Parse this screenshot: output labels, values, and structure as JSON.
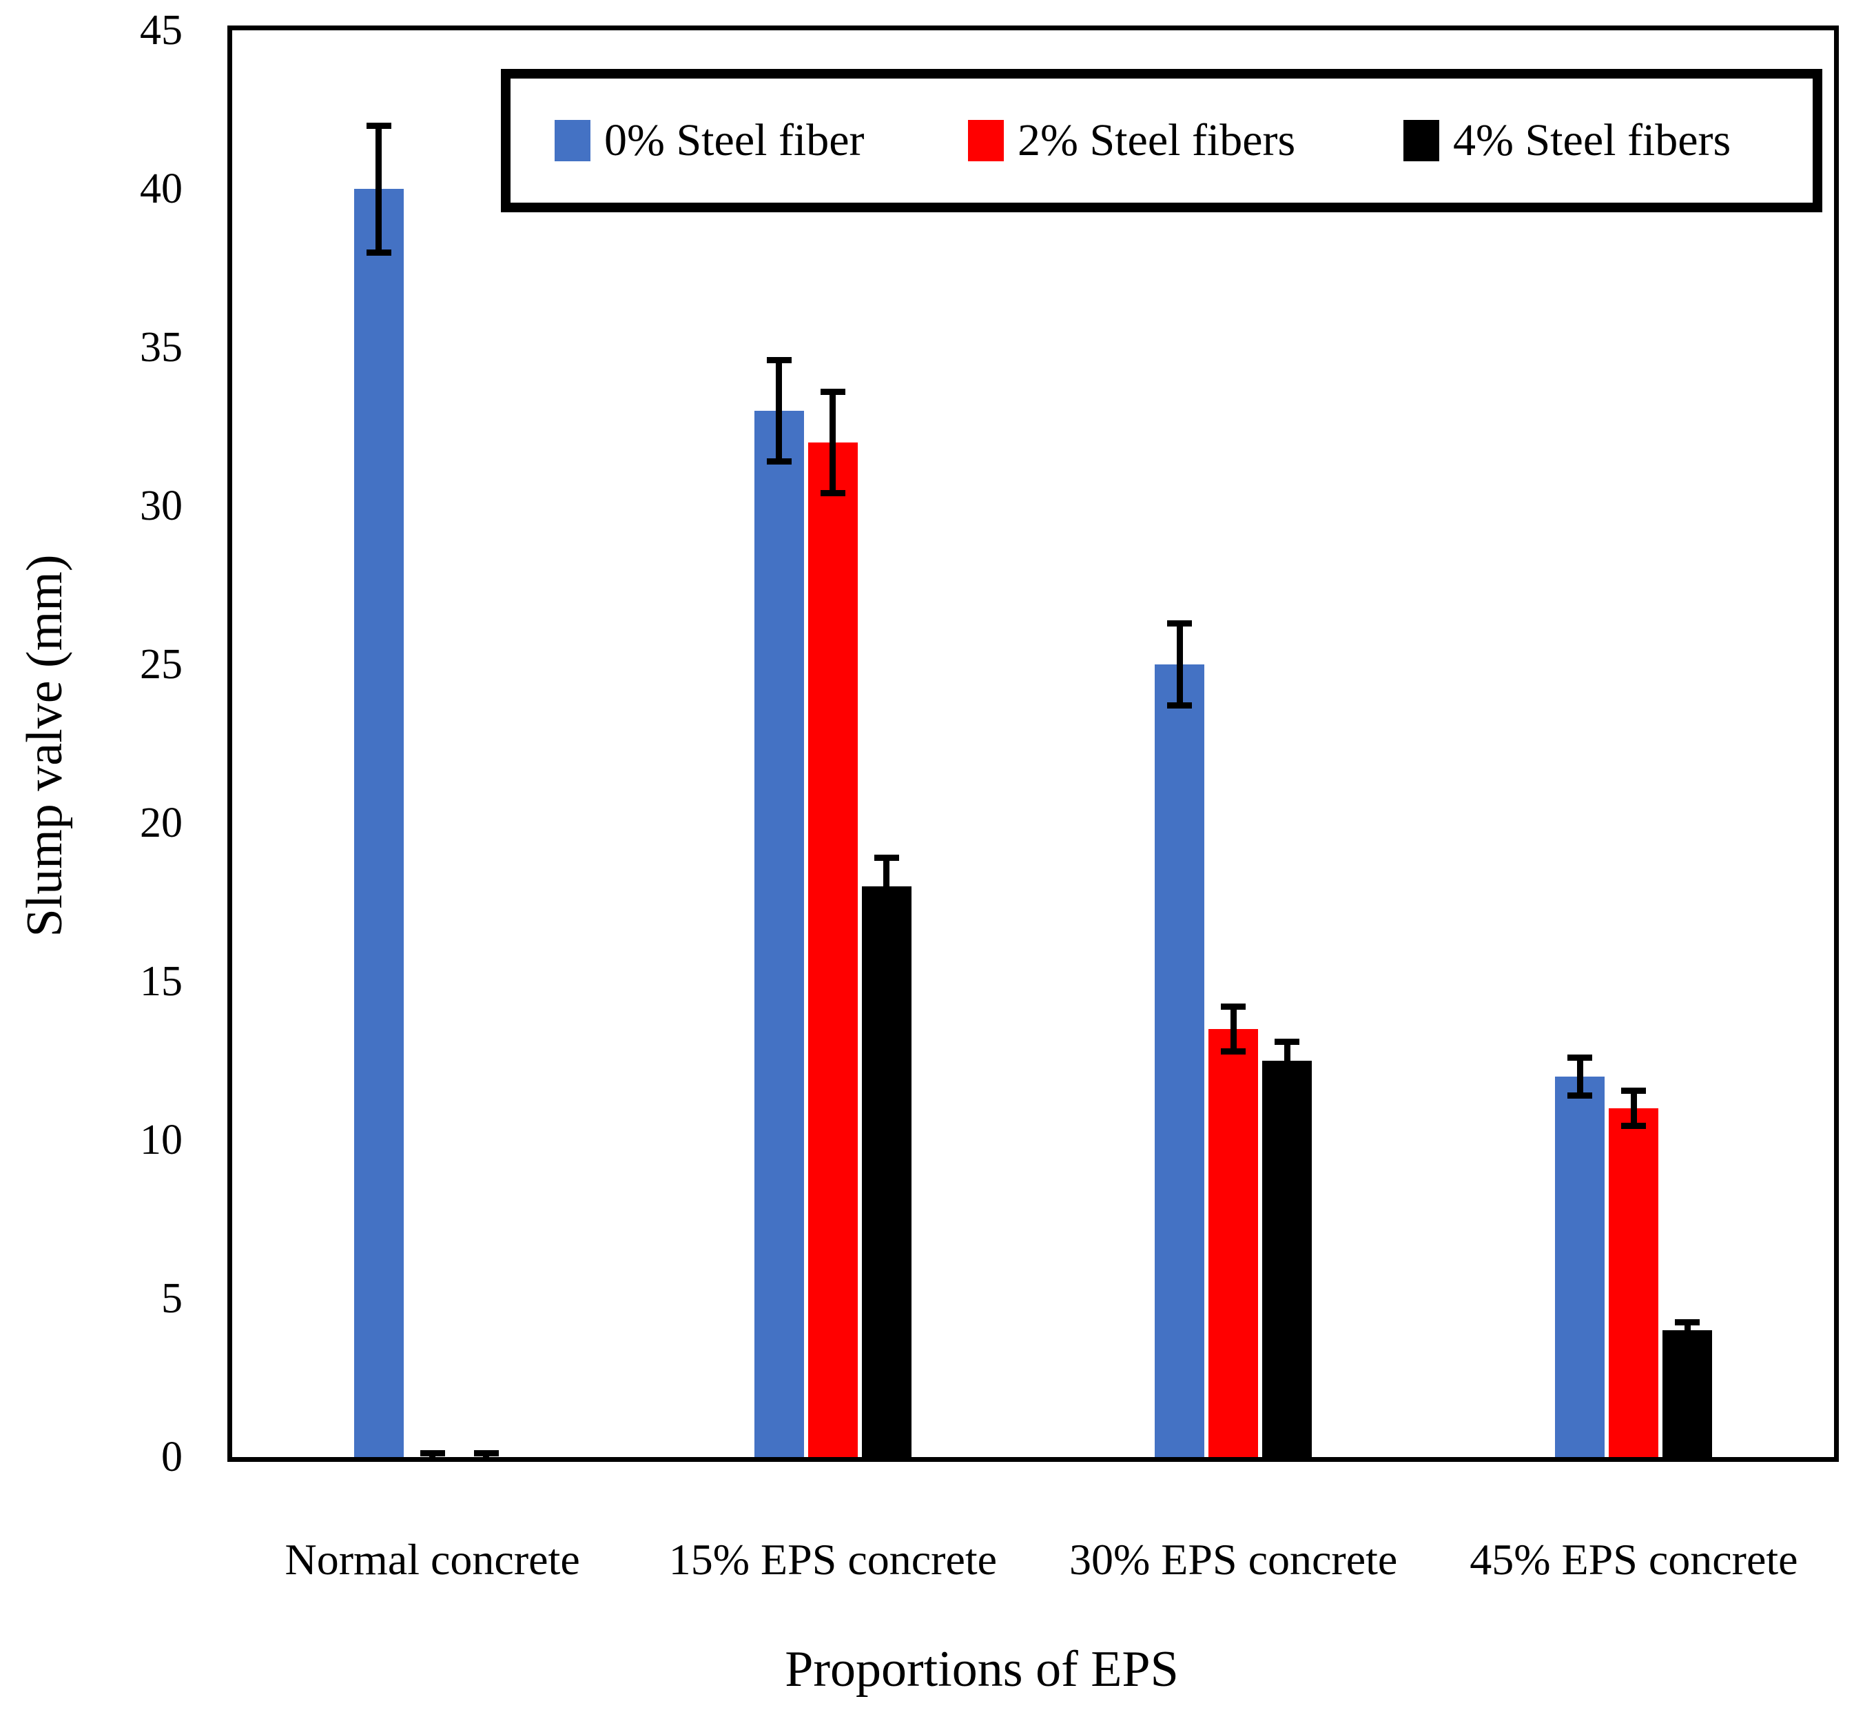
{
  "figure": {
    "background": "#ffffff"
  },
  "chart_data": {
    "type": "bar",
    "title": "",
    "xlabel": "Proportions of EPS",
    "ylabel": "Slump valve (mm)",
    "categories": [
      "Normal concrete",
      "15% EPS concrete",
      "30% EPS concrete",
      "45% EPS concrete"
    ],
    "series": [
      {
        "name": "0% Steel fiber",
        "color": "#4472C4",
        "values": [
          40,
          33,
          25,
          12
        ],
        "errors": [
          2,
          1.6,
          1.3,
          0.6
        ]
      },
      {
        "name": "2% Steel fibers",
        "color": "#FF0000",
        "values": [
          0,
          32,
          13.5,
          11
        ],
        "errors": [
          0.12,
          1.6,
          0.7,
          0.55
        ]
      },
      {
        "name": "4% Steel fibers",
        "color": "#000000",
        "values": [
          0,
          18,
          12.5,
          4
        ],
        "errors": [
          0.12,
          0.9,
          0.6,
          0.25
        ]
      }
    ],
    "ylim": [
      0,
      45
    ],
    "yticks": [
      0,
      5,
      10,
      15,
      20,
      25,
      30,
      35,
      40,
      45
    ],
    "grid": false,
    "error_bars": true,
    "legend_position": "top-inside",
    "axis_color": "#000000"
  }
}
